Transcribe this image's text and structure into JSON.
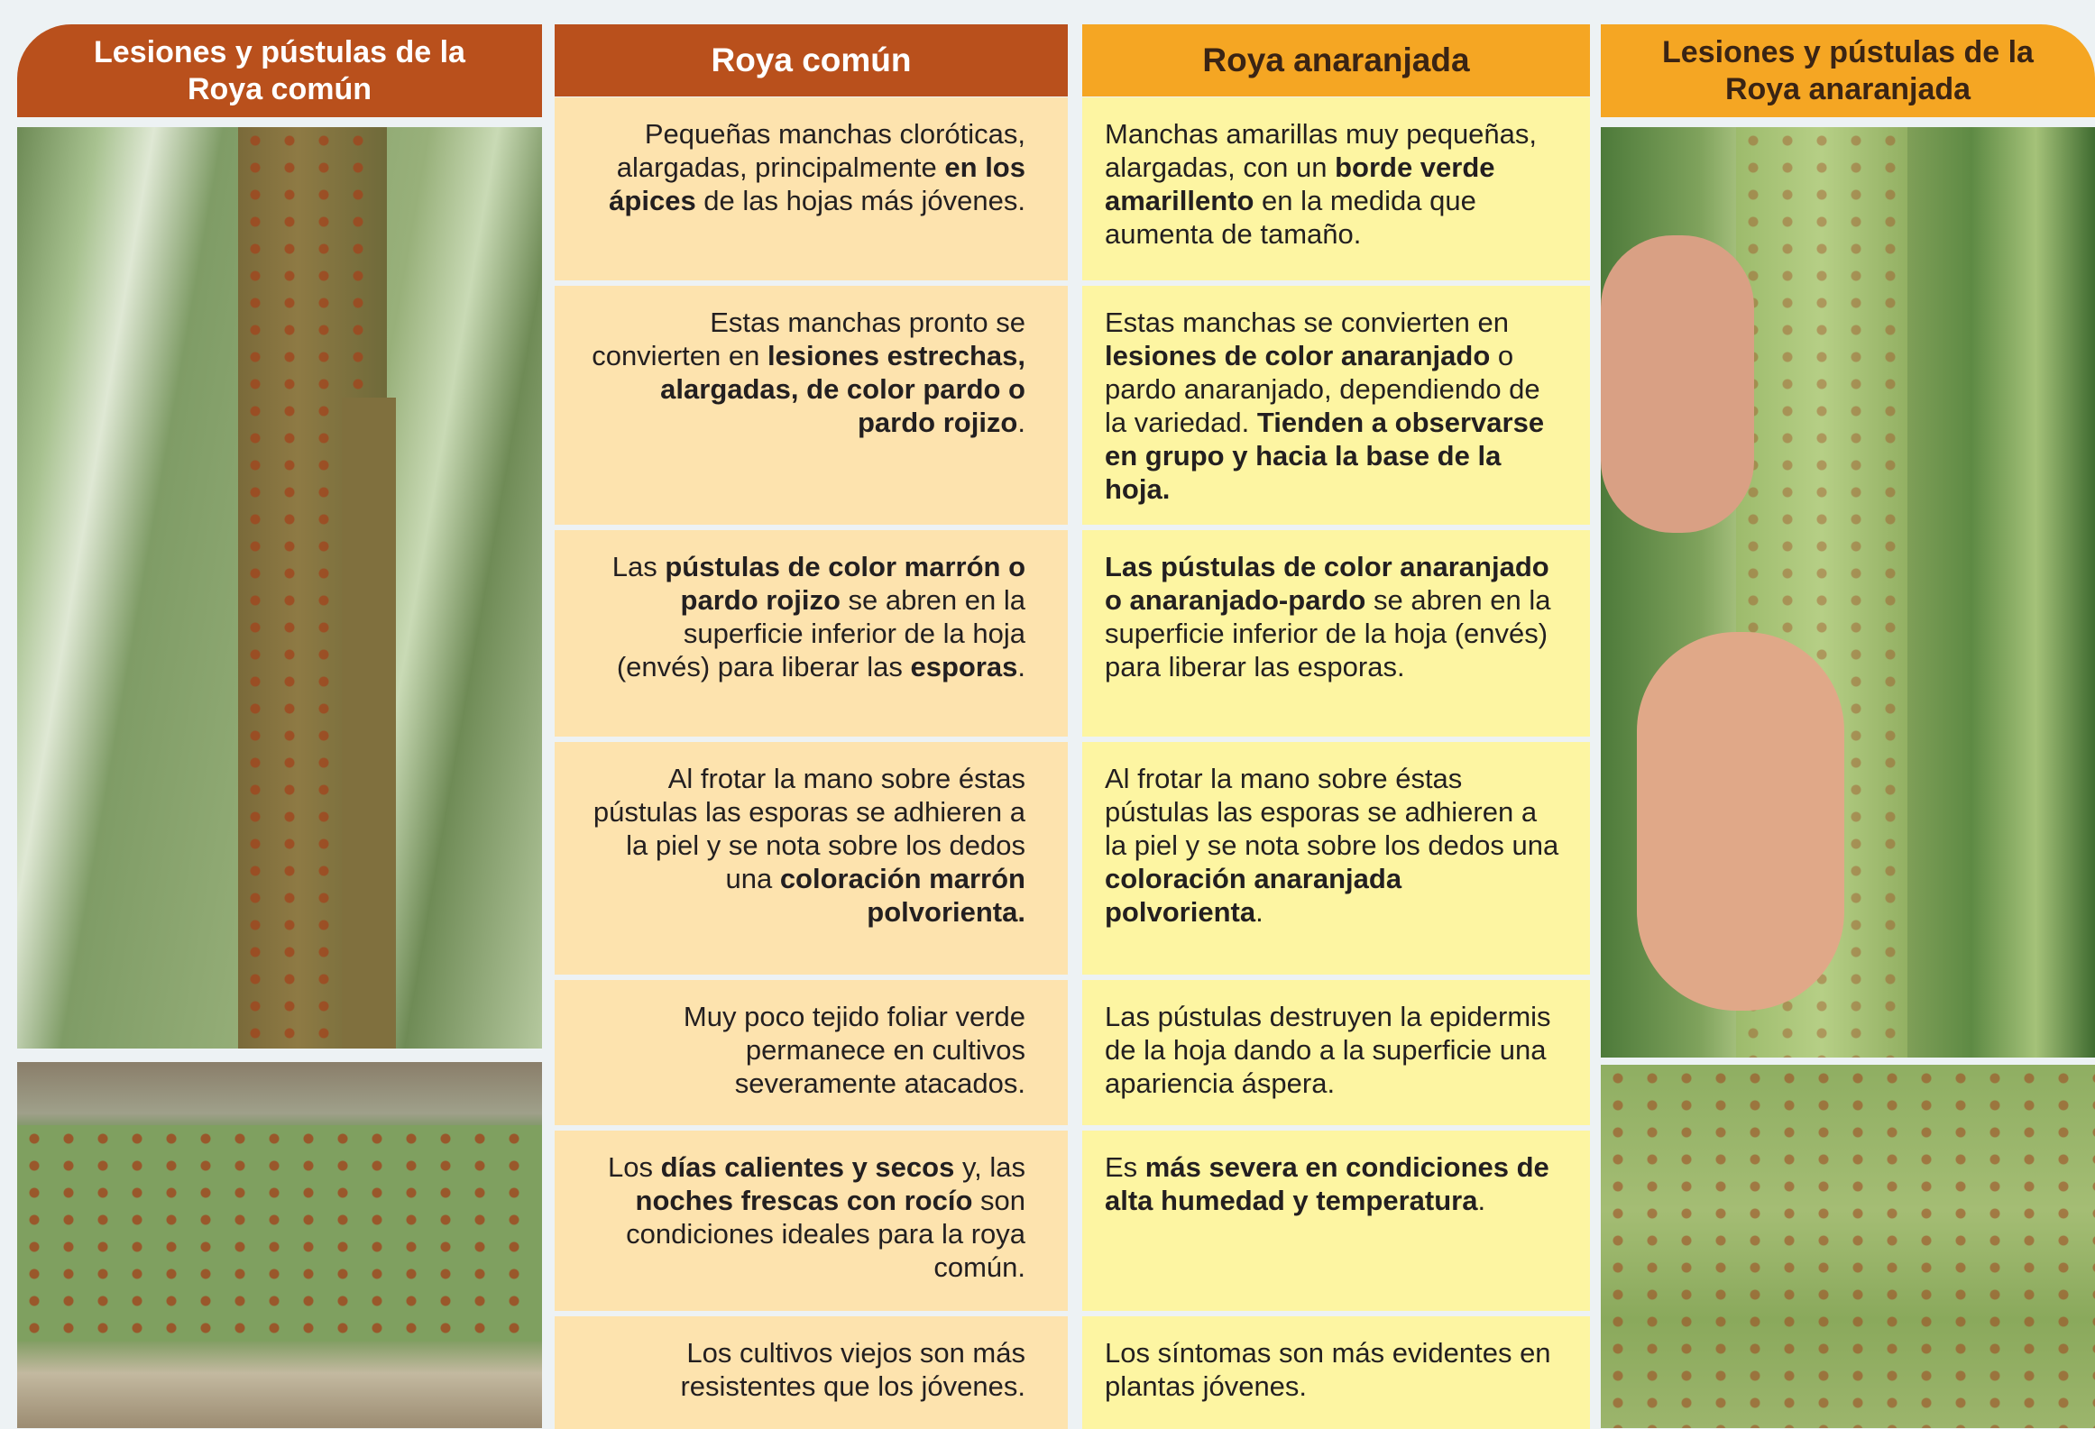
{
  "headers": {
    "common_photos": "Lesiones y pústulas de la Roya común",
    "common": "Roya común",
    "orange": "Roya anaranjada",
    "orange_photos": "Lesiones y pústulas de la Roya anaranjada"
  },
  "rows": [
    {
      "common": [
        {
          "text": "Pequeñas manchas cloróticas, alargadas, principalmente ",
          "bold": false
        },
        {
          "text": "en los ápices",
          "bold": true
        },
        {
          "text": " de las hojas más jóvenes.",
          "bold": false
        }
      ],
      "orange": [
        {
          "text": "Manchas amarillas muy pequeñas, alargadas, con un ",
          "bold": false
        },
        {
          "text": "borde verde amarillento",
          "bold": true
        },
        {
          "text": " en la medida que aumenta de tamaño.",
          "bold": false
        }
      ]
    },
    {
      "common": [
        {
          "text": "Estas manchas pronto se convierten en ",
          "bold": false
        },
        {
          "text": "lesiones estrechas, alargadas, de color pardo o pardo rojizo",
          "bold": true
        },
        {
          "text": ".",
          "bold": false
        }
      ],
      "orange": [
        {
          "text": "Estas manchas se convierten en ",
          "bold": false
        },
        {
          "text": "lesiones de color anaranjado",
          "bold": true
        },
        {
          "text": " o pardo anaranjado, dependiendo de la variedad. ",
          "bold": false
        },
        {
          "text": "Tienden a observarse en grupo y hacia la base de la hoja.",
          "bold": true
        }
      ]
    },
    {
      "common": [
        {
          "text": "Las ",
          "bold": false
        },
        {
          "text": "pústulas de color marrón o pardo rojizo",
          "bold": true
        },
        {
          "text": " se abren en la superficie inferior de la hoja (envés) para liberar las ",
          "bold": false
        },
        {
          "text": "esporas",
          "bold": true
        },
        {
          "text": ".",
          "bold": false
        }
      ],
      "orange": [
        {
          "text": "Las pústulas de color anaranjado o anaranjado-pardo",
          "bold": true
        },
        {
          "text": " se abren en la superficie inferior de la hoja (envés) para liberar las esporas.",
          "bold": false
        }
      ]
    },
    {
      "common": [
        {
          "text": "Al frotar la mano sobre éstas pústulas las esporas se adhieren a la piel y se nota sobre los dedos una ",
          "bold": false
        },
        {
          "text": "coloración marrón polvorienta.",
          "bold": true
        }
      ],
      "orange": [
        {
          "text": "Al frotar la mano sobre éstas pústulas las esporas se adhieren a la piel y se nota sobre los dedos una ",
          "bold": false
        },
        {
          "text": "coloración anaranjada polvorienta",
          "bold": true
        },
        {
          "text": ".",
          "bold": false
        }
      ]
    },
    {
      "common": [
        {
          "text": "Muy poco tejido foliar verde permanece en cultivos severamente atacados.",
          "bold": false
        }
      ],
      "orange": [
        {
          "text": "Las pústulas destruyen la epidermis de la hoja dando a la superficie una apariencia áspera.",
          "bold": false
        }
      ]
    },
    {
      "common": [
        {
          "text": "Los ",
          "bold": false
        },
        {
          "text": "días calientes y secos",
          "bold": true
        },
        {
          "text": " y, las ",
          "bold": false
        },
        {
          "text": "noches frescas con rocío",
          "bold": true
        },
        {
          "text": " son condiciones ideales para la roya común.",
          "bold": false
        }
      ],
      "orange": [
        {
          "text": "Es ",
          "bold": false
        },
        {
          "text": "más severa en condiciones de alta humedad y temperatura",
          "bold": true
        },
        {
          "text": ".",
          "bold": false
        }
      ]
    },
    {
      "common": [
        {
          "text": "Los cultivos viejos son más resistentes que los jóvenes.",
          "bold": false
        }
      ],
      "orange": [
        {
          "text": "Los síntomas son más evidentes en plantas jóvenes.",
          "bold": false
        }
      ]
    }
  ]
}
